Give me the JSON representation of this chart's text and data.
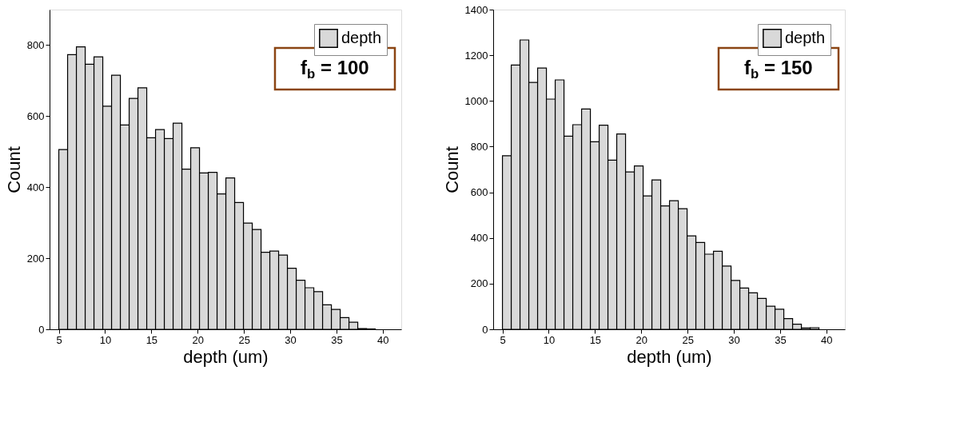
{
  "chart_data": [
    {
      "type": "histogram",
      "xlabel": "depth (um)",
      "ylabel": "Count",
      "annotations": [
        "f$_{b}$ = 100"
      ],
      "bins": [
        5,
        5.95,
        6.9,
        7.85,
        8.8,
        9.75,
        10.7,
        11.65,
        12.6,
        13.55,
        14.5,
        15.45,
        16.4,
        17.35,
        18.3,
        19.25,
        20.2,
        21.15,
        22.1,
        23.05,
        24,
        24.95,
        25.9,
        26.85,
        27.8,
        28.75,
        29.7,
        30.65,
        31.6,
        32.55,
        33.5,
        34.45,
        35.4,
        36.35,
        37.3,
        38.25,
        39.2
      ],
      "series": [
        {
          "name": "depth",
          "color": "#d9d9d9",
          "values": [
            506,
            773,
            795,
            746,
            767,
            628,
            715,
            575,
            650,
            680,
            539,
            562,
            537,
            580,
            451,
            511,
            440,
            442,
            381,
            426,
            357,
            299,
            281,
            217,
            220,
            209,
            172,
            138,
            117,
            106,
            69,
            56,
            33,
            20,
            2,
            1
          ]
        }
      ],
      "xlim": [
        4,
        42
      ],
      "xticks": [
        5,
        10,
        15,
        20,
        25,
        30,
        35,
        40
      ],
      "ylim": [
        0,
        900
      ],
      "yticks": [
        0,
        200,
        400,
        600,
        800
      ],
      "grid": false,
      "legend": "top right"
    },
    {
      "type": "histogram",
      "xlabel": "depth (um)",
      "ylabel": "Count",
      "annotations": [
        "f$_{b}$ = 150"
      ],
      "bins": [
        5,
        5.95,
        6.9,
        7.85,
        8.8,
        9.75,
        10.7,
        11.65,
        12.6,
        13.55,
        14.5,
        15.45,
        16.4,
        17.35,
        18.3,
        19.25,
        20.2,
        21.15,
        22.1,
        23.05,
        24,
        24.95,
        25.9,
        26.85,
        27.8,
        28.75,
        29.7,
        30.65,
        31.6,
        32.55,
        33.5,
        34.45,
        35.4,
        36.35,
        37.3,
        38.25,
        39.2
      ],
      "series": [
        {
          "name": "depth",
          "color": "#d9d9d9",
          "values": [
            760,
            1157,
            1267,
            1081,
            1144,
            1008,
            1092,
            846,
            896,
            965,
            821,
            894,
            741,
            855,
            689,
            715,
            584,
            654,
            540,
            563,
            528,
            409,
            380,
            329,
            342,
            277,
            214,
            181,
            160,
            135,
            101,
            88,
            47,
            22,
            6,
            7
          ]
        }
      ],
      "xlim": [
        4,
        42
      ],
      "xticks": [
        5,
        10,
        15,
        20,
        25,
        30,
        35,
        40
      ],
      "ylim": [
        0,
        1400
      ],
      "yticks": [
        0,
        200,
        400,
        600,
        800,
        1000,
        1200,
        1400
      ],
      "grid": false,
      "legend": "top right"
    }
  ]
}
